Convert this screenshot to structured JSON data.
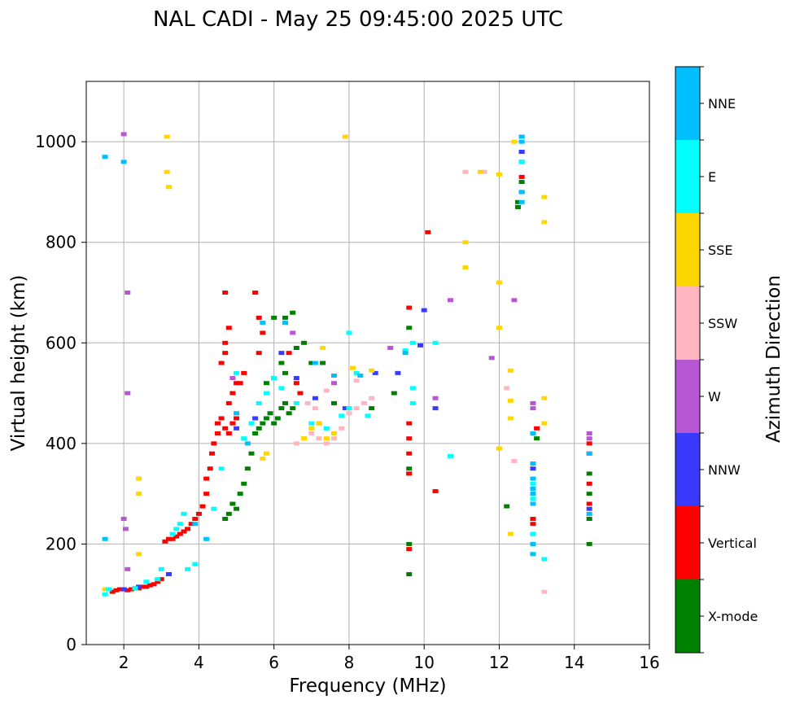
{
  "chart_data": {
    "type": "scatter",
    "title": "NAL CADI - May 25 09:45:00 2025 UTC",
    "xlabel": "Frequency (MHz)",
    "ylabel": "Virtual height (km)",
    "xlim": [
      1,
      16
    ],
    "ylim": [
      0,
      1120
    ],
    "xticks": [
      "2",
      "4",
      "6",
      "8",
      "10",
      "12",
      "14",
      "16"
    ],
    "yticks": [
      "0",
      "200",
      "400",
      "600",
      "800",
      "1000"
    ],
    "grid": true,
    "colorbar": {
      "label": "Azimuth Direction",
      "categories": [
        "X-mode",
        "Vertical",
        "NNW",
        "W",
        "SSW",
        "SSE",
        "E",
        "NNE"
      ],
      "colors": [
        "#008000",
        "#ff0000",
        "#3a3aff",
        "#b856d6",
        "#ffb6c1",
        "#ffd700",
        "#00ffff",
        "#00bfff"
      ]
    },
    "series": [
      {
        "name": "X-mode",
        "points": [
          [
            5.1,
            300
          ],
          [
            5.2,
            320
          ],
          [
            5.3,
            350
          ],
          [
            5.4,
            380
          ],
          [
            5.5,
            420
          ],
          [
            5.6,
            430
          ],
          [
            5.7,
            440
          ],
          [
            5.8,
            450
          ],
          [
            5.9,
            460
          ],
          [
            6.0,
            440
          ],
          [
            6.1,
            450
          ],
          [
            6.2,
            470
          ],
          [
            6.3,
            480
          ],
          [
            6.4,
            460
          ],
          [
            6.5,
            470
          ],
          [
            5.8,
            520
          ],
          [
            6.0,
            530
          ],
          [
            6.2,
            560
          ],
          [
            6.3,
            540
          ],
          [
            6.6,
            590
          ],
          [
            6.5,
            660
          ],
          [
            6.0,
            650
          ],
          [
            6.3,
            650
          ],
          [
            6.8,
            600
          ],
          [
            7.0,
            560
          ],
          [
            7.3,
            560
          ],
          [
            4.8,
            260
          ],
          [
            4.9,
            280
          ],
          [
            5.0,
            270
          ],
          [
            4.7,
            250
          ],
          [
            9.6,
            340
          ],
          [
            9.6,
            350
          ],
          [
            9.6,
            200
          ],
          [
            9.6,
            140
          ],
          [
            9.6,
            630
          ],
          [
            12.5,
            870
          ],
          [
            12.5,
            880
          ],
          [
            12.6,
            900
          ],
          [
            12.6,
            920
          ],
          [
            13.0,
            410
          ],
          [
            14.4,
            200
          ],
          [
            14.4,
            250
          ],
          [
            14.4,
            300
          ],
          [
            14.4,
            340
          ],
          [
            12.2,
            275
          ],
          [
            7.6,
            480
          ],
          [
            8.6,
            470
          ],
          [
            9.2,
            500
          ]
        ]
      },
      {
        "name": "Vertical",
        "points": [
          [
            1.7,
            105
          ],
          [
            1.8,
            108
          ],
          [
            1.9,
            110
          ],
          [
            2.0,
            110
          ],
          [
            2.1,
            108
          ],
          [
            2.2,
            110
          ],
          [
            2.3,
            112
          ],
          [
            2.4,
            112
          ],
          [
            2.5,
            115
          ],
          [
            2.6,
            115
          ],
          [
            2.7,
            118
          ],
          [
            2.8,
            120
          ],
          [
            2.9,
            125
          ],
          [
            3.0,
            130
          ],
          [
            3.1,
            205
          ],
          [
            3.2,
            210
          ],
          [
            3.3,
            210
          ],
          [
            3.4,
            215
          ],
          [
            3.5,
            220
          ],
          [
            3.6,
            225
          ],
          [
            3.7,
            230
          ],
          [
            3.8,
            240
          ],
          [
            3.9,
            250
          ],
          [
            4.0,
            260
          ],
          [
            4.1,
            275
          ],
          [
            4.2,
            300
          ],
          [
            4.2,
            330
          ],
          [
            4.3,
            350
          ],
          [
            4.35,
            380
          ],
          [
            4.4,
            400
          ],
          [
            4.5,
            420
          ],
          [
            4.5,
            440
          ],
          [
            4.6,
            450
          ],
          [
            4.7,
            430
          ],
          [
            4.8,
            420
          ],
          [
            4.9,
            440
          ],
          [
            5.0,
            450
          ],
          [
            4.8,
            480
          ],
          [
            4.9,
            500
          ],
          [
            5.0,
            520
          ],
          [
            5.1,
            520
          ],
          [
            5.2,
            540
          ],
          [
            4.6,
            560
          ],
          [
            4.7,
            580
          ],
          [
            4.7,
            600
          ],
          [
            4.8,
            630
          ],
          [
            4.7,
            700
          ],
          [
            5.5,
            700
          ],
          [
            5.6,
            650
          ],
          [
            5.7,
            620
          ],
          [
            5.6,
            580
          ],
          [
            6.4,
            580
          ],
          [
            6.6,
            520
          ],
          [
            6.7,
            500
          ],
          [
            9.6,
            340
          ],
          [
            9.6,
            380
          ],
          [
            9.6,
            410
          ],
          [
            9.6,
            440
          ],
          [
            9.6,
            670
          ],
          [
            9.6,
            190
          ],
          [
            10.1,
            820
          ],
          [
            10.3,
            305
          ],
          [
            12.6,
            960
          ],
          [
            12.6,
            980
          ],
          [
            12.6,
            930
          ],
          [
            12.9,
            240
          ],
          [
            12.9,
            250
          ],
          [
            13.0,
            430
          ],
          [
            14.4,
            380
          ],
          [
            14.4,
            400
          ],
          [
            14.4,
            320
          ],
          [
            14.4,
            280
          ]
        ]
      },
      {
        "name": "NNW",
        "points": [
          [
            2.0,
            110
          ],
          [
            2.4,
            115
          ],
          [
            3.2,
            140
          ],
          [
            5.0,
            430
          ],
          [
            5.5,
            450
          ],
          [
            6.2,
            580
          ],
          [
            6.6,
            530
          ],
          [
            7.1,
            490
          ],
          [
            7.9,
            470
          ],
          [
            8.7,
            540
          ],
          [
            9.3,
            540
          ],
          [
            9.9,
            595
          ],
          [
            10.0,
            665
          ],
          [
            10.3,
            470
          ],
          [
            12.6,
            980
          ],
          [
            12.9,
            220
          ],
          [
            12.9,
            200
          ],
          [
            12.9,
            350
          ],
          [
            14.4,
            270
          ]
        ]
      },
      {
        "name": "W",
        "points": [
          [
            2.0,
            1015
          ],
          [
            2.1,
            700
          ],
          [
            2.1,
            500
          ],
          [
            2.0,
            250
          ],
          [
            2.05,
            230
          ],
          [
            2.1,
            150
          ],
          [
            4.9,
            530
          ],
          [
            6.5,
            620
          ],
          [
            7.2,
            440
          ],
          [
            7.6,
            520
          ],
          [
            9.1,
            590
          ],
          [
            10.3,
            490
          ],
          [
            10.7,
            685
          ],
          [
            11.8,
            570
          ],
          [
            12.4,
            685
          ],
          [
            12.9,
            470
          ],
          [
            12.9,
            480
          ],
          [
            14.4,
            410
          ],
          [
            14.4,
            420
          ]
        ]
      },
      {
        "name": "SSW",
        "points": [
          [
            6.6,
            400
          ],
          [
            6.8,
            410
          ],
          [
            7.0,
            420
          ],
          [
            7.2,
            410
          ],
          [
            7.4,
            400
          ],
          [
            7.6,
            410
          ],
          [
            7.8,
            430
          ],
          [
            8.0,
            460
          ],
          [
            8.2,
            470
          ],
          [
            8.4,
            480
          ],
          [
            8.6,
            490
          ],
          [
            6.9,
            480
          ],
          [
            7.1,
            470
          ],
          [
            11.1,
            940
          ],
          [
            11.6,
            940
          ],
          [
            12.4,
            365
          ],
          [
            13.2,
            105
          ],
          [
            12.2,
            510
          ],
          [
            8.2,
            525
          ],
          [
            7.4,
            505
          ]
        ]
      },
      {
        "name": "SSE",
        "points": [
          [
            1.5,
            110
          ],
          [
            2.4,
            330
          ],
          [
            2.4,
            300
          ],
          [
            2.4,
            180
          ],
          [
            3.15,
            1010
          ],
          [
            3.15,
            940
          ],
          [
            3.2,
            910
          ],
          [
            5.7,
            370
          ],
          [
            5.8,
            380
          ],
          [
            6.8,
            410
          ],
          [
            7.0,
            430
          ],
          [
            7.2,
            440
          ],
          [
            7.4,
            410
          ],
          [
            7.6,
            420
          ],
          [
            7.3,
            590
          ],
          [
            8.1,
            550
          ],
          [
            8.6,
            545
          ],
          [
            11.1,
            800
          ],
          [
            11.1,
            750
          ],
          [
            11.5,
            940
          ],
          [
            12.0,
            935
          ],
          [
            12.0,
            720
          ],
          [
            12.0,
            630
          ],
          [
            12.0,
            390
          ],
          [
            12.3,
            545
          ],
          [
            12.3,
            485
          ],
          [
            12.3,
            450
          ],
          [
            12.3,
            220
          ],
          [
            12.4,
            1000
          ],
          [
            13.2,
            890
          ],
          [
            13.2,
            840
          ],
          [
            13.2,
            490
          ],
          [
            13.2,
            440
          ],
          [
            7.9,
            1010
          ]
        ]
      },
      {
        "name": "E",
        "points": [
          [
            1.5,
            100
          ],
          [
            1.6,
            110
          ],
          [
            2.3,
            112
          ],
          [
            2.6,
            125
          ],
          [
            2.9,
            130
          ],
          [
            3.0,
            150
          ],
          [
            3.3,
            220
          ],
          [
            3.4,
            230
          ],
          [
            3.5,
            240
          ],
          [
            3.6,
            260
          ],
          [
            3.7,
            150
          ],
          [
            3.9,
            160
          ],
          [
            4.4,
            270
          ],
          [
            4.6,
            350
          ],
          [
            5.0,
            540
          ],
          [
            5.2,
            410
          ],
          [
            5.4,
            440
          ],
          [
            5.6,
            480
          ],
          [
            5.8,
            500
          ],
          [
            6.0,
            530
          ],
          [
            6.2,
            510
          ],
          [
            6.6,
            480
          ],
          [
            7.0,
            440
          ],
          [
            7.4,
            430
          ],
          [
            7.8,
            455
          ],
          [
            8.0,
            470
          ],
          [
            8.2,
            540
          ],
          [
            8.0,
            620
          ],
          [
            9.7,
            510
          ],
          [
            9.7,
            480
          ],
          [
            9.7,
            600
          ],
          [
            10.3,
            600
          ],
          [
            10.7,
            375
          ],
          [
            12.6,
            1010
          ],
          [
            12.6,
            960
          ],
          [
            12.9,
            320
          ],
          [
            12.9,
            300
          ],
          [
            12.9,
            290
          ],
          [
            12.9,
            360
          ],
          [
            12.9,
            220
          ],
          [
            13.2,
            170
          ],
          [
            8.5,
            455
          ],
          [
            9.5,
            585
          ]
        ]
      },
      {
        "name": "NNE",
        "points": [
          [
            1.5,
            970
          ],
          [
            1.5,
            210
          ],
          [
            2.0,
            960
          ],
          [
            5.0,
            460
          ],
          [
            5.7,
            640
          ],
          [
            6.3,
            640
          ],
          [
            7.1,
            560
          ],
          [
            7.6,
            535
          ],
          [
            8.3,
            535
          ],
          [
            9.5,
            580
          ],
          [
            12.6,
            1000
          ],
          [
            12.6,
            1010
          ],
          [
            12.6,
            900
          ],
          [
            12.6,
            880
          ],
          [
            12.9,
            300
          ],
          [
            12.9,
            310
          ],
          [
            12.9,
            280
          ],
          [
            12.9,
            330
          ],
          [
            12.9,
            360
          ],
          [
            12.9,
            200
          ],
          [
            12.9,
            180
          ],
          [
            12.9,
            420
          ],
          [
            14.4,
            380
          ],
          [
            14.4,
            260
          ],
          [
            5.3,
            400
          ],
          [
            4.2,
            210
          ],
          [
            3.9,
            240
          ]
        ]
      }
    ]
  }
}
